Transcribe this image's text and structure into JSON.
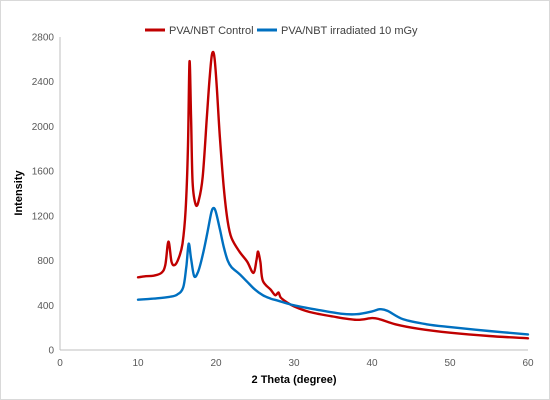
{
  "chart_data": {
    "type": "line",
    "title": "",
    "xlabel": "2 Theta (degree)",
    "ylabel": "Intensity",
    "xlim": [
      0,
      60
    ],
    "ylim": [
      0,
      2800
    ],
    "x_ticks": [
      0,
      10,
      20,
      30,
      40,
      50,
      60
    ],
    "y_ticks": [
      0,
      400,
      800,
      1200,
      1600,
      2000,
      2400,
      2800
    ],
    "grid": false,
    "legend_position": "top",
    "series": [
      {
        "name": "PVA/NBT Control",
        "color": "#c00000",
        "points": [
          [
            10,
            650
          ],
          [
            11,
            660
          ],
          [
            12,
            665
          ],
          [
            13,
            690
          ],
          [
            13.5,
            760
          ],
          [
            13.9,
            970
          ],
          [
            14.3,
            790
          ],
          [
            14.7,
            760
          ],
          [
            15.2,
            820
          ],
          [
            15.7,
            950
          ],
          [
            16.1,
            1250
          ],
          [
            16.4,
            1800
          ],
          [
            16.6,
            2580
          ],
          [
            16.8,
            2100
          ],
          [
            17.0,
            1500
          ],
          [
            17.4,
            1300
          ],
          [
            17.8,
            1340
          ],
          [
            18.3,
            1550
          ],
          [
            18.8,
            2050
          ],
          [
            19.2,
            2450
          ],
          [
            19.5,
            2650
          ],
          [
            19.8,
            2620
          ],
          [
            20.1,
            2350
          ],
          [
            20.5,
            1900
          ],
          [
            21.0,
            1450
          ],
          [
            21.5,
            1150
          ],
          [
            22.0,
            1000
          ],
          [
            23.0,
            880
          ],
          [
            24.0,
            790
          ],
          [
            24.8,
            690
          ],
          [
            25.2,
            810
          ],
          [
            25.4,
            880
          ],
          [
            25.7,
            780
          ],
          [
            26.0,
            620
          ],
          [
            27.0,
            540
          ],
          [
            27.6,
            490
          ],
          [
            28.0,
            515
          ],
          [
            28.3,
            470
          ],
          [
            29.0,
            430
          ],
          [
            30.0,
            390
          ],
          [
            32.0,
            340
          ],
          [
            35.0,
            300
          ],
          [
            38.0,
            270
          ],
          [
            40.0,
            285
          ],
          [
            41.0,
            275
          ],
          [
            43.0,
            230
          ],
          [
            46.0,
            190
          ],
          [
            50.0,
            155
          ],
          [
            55.0,
            125
          ],
          [
            60.0,
            105
          ]
        ]
      },
      {
        "name": "PVA/NBT irradiated 10 mGy",
        "color": "#0070c0",
        "points": [
          [
            10,
            450
          ],
          [
            12,
            460
          ],
          [
            14,
            475
          ],
          [
            15.0,
            495
          ],
          [
            15.8,
            560
          ],
          [
            16.2,
            750
          ],
          [
            16.5,
            950
          ],
          [
            16.8,
            820
          ],
          [
            17.2,
            660
          ],
          [
            17.7,
            700
          ],
          [
            18.3,
            850
          ],
          [
            18.9,
            1050
          ],
          [
            19.4,
            1230
          ],
          [
            19.7,
            1270
          ],
          [
            20.0,
            1230
          ],
          [
            20.5,
            1080
          ],
          [
            21.0,
            920
          ],
          [
            21.5,
            800
          ],
          [
            22.0,
            740
          ],
          [
            23.0,
            680
          ],
          [
            24.0,
            610
          ],
          [
            25.0,
            540
          ],
          [
            26.0,
            490
          ],
          [
            27.0,
            460
          ],
          [
            28.0,
            440
          ],
          [
            30.0,
            400
          ],
          [
            33.0,
            360
          ],
          [
            36.0,
            325
          ],
          [
            38.0,
            320
          ],
          [
            40.0,
            345
          ],
          [
            41.0,
            365
          ],
          [
            42.0,
            350
          ],
          [
            44.0,
            275
          ],
          [
            47.0,
            230
          ],
          [
            50.0,
            205
          ],
          [
            55.0,
            170
          ],
          [
            60.0,
            140
          ]
        ]
      }
    ]
  }
}
